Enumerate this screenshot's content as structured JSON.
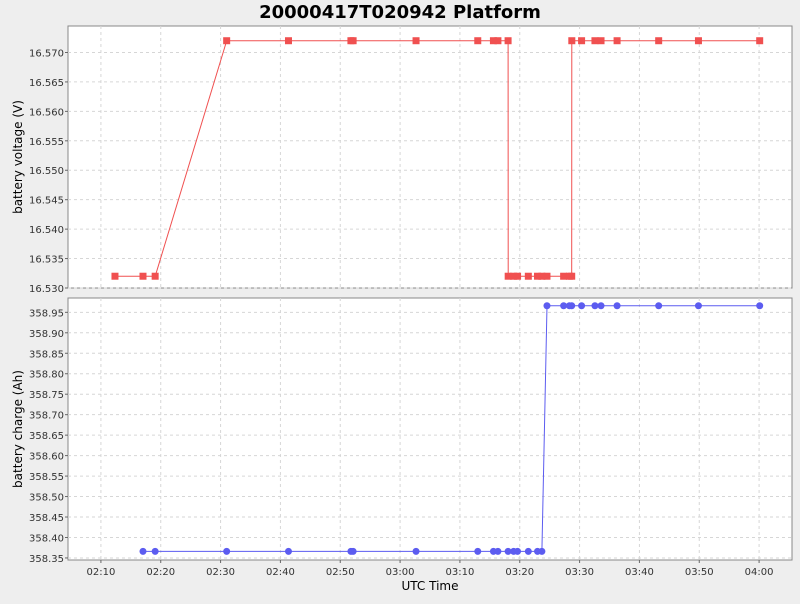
{
  "chart_data": {
    "type": "line",
    "title": "20000417T020942 Platform",
    "xlabel": "UTC Time",
    "x_ticks": [
      "02:10",
      "02:20",
      "02:30",
      "02:40",
      "02:50",
      "03:00",
      "03:10",
      "03:20",
      "03:30",
      "03:40",
      "03:50",
      "04:00"
    ],
    "x_range": [
      "02:04:30",
      "04:05:30"
    ],
    "grid": true,
    "panels": [
      {
        "ylabel": "battery voltage (V)",
        "ylim": [
          16.53,
          16.5745
        ],
        "y_ticks": [
          "16.530",
          "16.535",
          "16.540",
          "16.545",
          "16.550",
          "16.555",
          "16.560",
          "16.565",
          "16.570"
        ],
        "color": "#f05050",
        "marker": "square",
        "series": [
          {
            "x": [
              "02:12:21",
              "02:17:02",
              "02:19:04",
              "02:31:01",
              "02:41:21",
              "02:51:47",
              "02:52:09",
              "03:02:40",
              "03:12:59",
              "03:15:36",
              "03:16:21",
              "03:18:03",
              "03:18:04",
              "03:18:59",
              "03:19:38",
              "03:21:26",
              "03:22:58",
              "03:23:42",
              "03:24:33",
              "03:27:20",
              "03:28:18",
              "03:28:41",
              "03:28:42",
              "03:30:20",
              "03:32:34",
              "03:33:35",
              "03:36:16",
              "03:43:13",
              "03:49:52",
              "04:00:06"
            ],
            "y": [
              16.532,
              16.532,
              16.532,
              16.572,
              16.572,
              16.572,
              16.572,
              16.572,
              16.572,
              16.572,
              16.572,
              16.572,
              16.532,
              16.532,
              16.532,
              16.532,
              16.532,
              16.532,
              16.532,
              16.532,
              16.532,
              16.532,
              16.572,
              16.572,
              16.572,
              16.572,
              16.572,
              16.572,
              16.572,
              16.572
            ]
          }
        ]
      },
      {
        "ylabel": "battery charge (Ah)",
        "ylim": [
          358.345,
          358.985
        ],
        "y_ticks": [
          "358.35",
          "358.40",
          "358.45",
          "358.50",
          "358.55",
          "358.60",
          "358.65",
          "358.70",
          "358.75",
          "358.80",
          "358.85",
          "358.90",
          "358.95"
        ],
        "color": "#5c5cf0",
        "marker": "circle",
        "series": [
          {
            "x": [
              "02:17:02",
              "02:19:04",
              "02:31:01",
              "02:41:21",
              "02:51:47",
              "02:52:09",
              "03:02:40",
              "03:12:59",
              "03:15:36",
              "03:16:21",
              "03:18:03",
              "03:18:59",
              "03:19:38",
              "03:21:26",
              "03:22:58",
              "03:23:42",
              "03:24:33",
              "03:27:20",
              "03:28:18",
              "03:28:41",
              "03:30:20",
              "03:32:34",
              "03:33:35",
              "03:36:16",
              "03:43:13",
              "03:49:52",
              "04:00:06"
            ],
            "y": [
              358.366,
              358.366,
              358.366,
              358.366,
              358.366,
              358.366,
              358.366,
              358.366,
              358.366,
              358.366,
              358.366,
              358.366,
              358.366,
              358.366,
              358.366,
              358.366,
              358.966,
              358.966,
              358.966,
              358.966,
              358.966,
              358.966,
              358.966,
              358.966,
              358.966,
              358.966,
              358.966
            ]
          }
        ]
      }
    ]
  }
}
